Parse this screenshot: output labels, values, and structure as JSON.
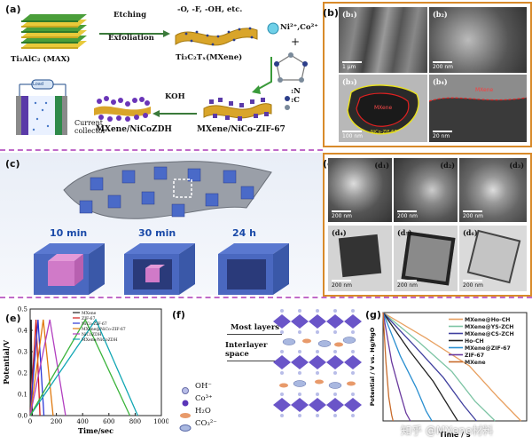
{
  "panel_a": {
    "label": "(a)",
    "max_label": "Ti₃AlC₂ (MAX)",
    "etching": "Etching",
    "exfoliation": "Exfoliation",
    "groups": "-O, -F, -OH, etc.",
    "mxene_label": "Ti₃C₂Tₓ(MXene)",
    "ions": "Ni²⁺,Co²⁺",
    "plus": "+",
    "n_key": ":N",
    "c_key": ":C",
    "koh": "KOH",
    "zdh_label": "MXene/NiCoZDH",
    "zif_label": "MXene/NiCo-ZIF-67",
    "load": "Load",
    "current_collector": "Current\ncollector"
  },
  "panel_b": {
    "label": "(b)",
    "b1": "(b₁)",
    "b2": "(b₂)",
    "b3": "(b₃)",
    "b4": "(b₄)",
    "b1_scale": "1 µm",
    "b2_scale": "200 nm",
    "b3_scale": "100 nm",
    "b4_scale": "20 nm",
    "b3_mxene": "MXene",
    "b3_nico": "NiCo-ZIF-67",
    "b4_mxene": "MXene"
  },
  "panel_c": {
    "label": "(c)",
    "t1": "10 min",
    "t2": "30 min",
    "t3": "24 h"
  },
  "panel_d": {
    "label": "(d)",
    "d1": "(d₁)",
    "d2": "(d₂)",
    "d3": "(d₃)",
    "d4": "(d₄)",
    "d5": "(d₅)",
    "d6": "(d₆)",
    "s1": "200 nm",
    "s2": "200 nm",
    "s3": "200 nm",
    "s4": "200 nm",
    "s5": "200 nm",
    "s6": "200 nm"
  },
  "panel_f": {
    "label": "(f)",
    "most_layers": "Most layers",
    "interlayer": "Interlayer\nspace",
    "legend": [
      "OH⁻",
      "Co³⁺",
      "H₂O",
      "CO₃²⁻"
    ]
  },
  "watermark": "知乎 @MXene材料",
  "chart_data": [
    {
      "panel": "(e)",
      "type": "line",
      "xlabel": "Time/sec",
      "ylabel": "Potential/V",
      "xlim": [
        0,
        1000
      ],
      "ylim": [
        0,
        0.5
      ],
      "xticks": [
        0,
        200,
        400,
        600,
        800,
        1000
      ],
      "yticks": [
        0.0,
        0.1,
        0.2,
        0.3,
        0.4,
        0.5
      ],
      "series": [
        {
          "name": "MXene",
          "color": "#222222",
          "x": [
            0,
            8,
            16
          ],
          "y": [
            0,
            0.45,
            0
          ]
        },
        {
          "name": "ZIF-67",
          "color": "#d11a1a",
          "x": [
            0,
            45,
            75
          ],
          "y": [
            0,
            0.45,
            0
          ]
        },
        {
          "name": "NiCo-ZIF-67",
          "color": "#2b36d6",
          "x": [
            0,
            60,
            105
          ],
          "y": [
            0,
            0.45,
            0
          ]
        },
        {
          "name": "MXene@NiCo-ZIF-67",
          "color": "#e07a10",
          "x": [
            0,
            100,
            175
          ],
          "y": [
            0,
            0.45,
            0
          ]
        },
        {
          "name": "NiCoZDH",
          "color": "#b23fc0",
          "x": [
            0,
            150,
            270
          ],
          "y": [
            0,
            0.45,
            0
          ]
        },
        {
          "name": "MXene/NiCoZDH",
          "color": "#12a7b4",
          "x": [
            0,
            500,
            820
          ],
          "y": [
            0,
            0.45,
            0
          ]
        },
        {
          "name": "",
          "color": "#3cb43c",
          "x": [
            0,
            420,
            760
          ],
          "y": [
            0,
            0.45,
            0
          ]
        }
      ]
    },
    {
      "panel": "(g)",
      "type": "line",
      "xlabel": "Time / s",
      "ylabel": "Potential / V vs. Hg/HgO",
      "xlim": [
        0,
        1000
      ],
      "ylim": [
        0,
        0.55
      ],
      "series": [
        {
          "name": "MXene@Ho-CH",
          "color": "#e8a060",
          "x": [
            0,
            300,
            600,
            800,
            960
          ],
          "y": [
            0.55,
            0.42,
            0.28,
            0.12,
            0.0
          ]
        },
        {
          "name": "MXene@YS-ZCH",
          "color": "#7dc4a4",
          "x": [
            0,
            250,
            480,
            640,
            780
          ],
          "y": [
            0.55,
            0.4,
            0.25,
            0.1,
            0.0
          ]
        },
        {
          "name": "MXene@CS-ZCH",
          "color": "#3f3f9e",
          "x": [
            0,
            220,
            420,
            560,
            650
          ],
          "y": [
            0.55,
            0.38,
            0.22,
            0.08,
            0.0
          ]
        },
        {
          "name": "Ho-CH",
          "color": "#222222",
          "x": [
            0,
            180,
            350,
            460,
            520
          ],
          "y": [
            0.55,
            0.36,
            0.2,
            0.07,
            0.0
          ]
        },
        {
          "name": "MXene@ZIF-67",
          "color": "#2a8fd0",
          "x": [
            0,
            120,
            230,
            300,
            340
          ],
          "y": [
            0.55,
            0.33,
            0.17,
            0.05,
            0.0
          ]
        },
        {
          "name": "ZIF-67",
          "color": "#6a3a9e",
          "x": [
            0,
            60,
            120,
            160,
            190
          ],
          "y": [
            0.55,
            0.3,
            0.14,
            0.04,
            0.0
          ]
        },
        {
          "name": "MXene",
          "color": "#c86b2b",
          "x": [
            0,
            20,
            40,
            60,
            70
          ],
          "y": [
            0.55,
            0.3,
            0.12,
            0.03,
            0.0
          ]
        }
      ]
    }
  ]
}
